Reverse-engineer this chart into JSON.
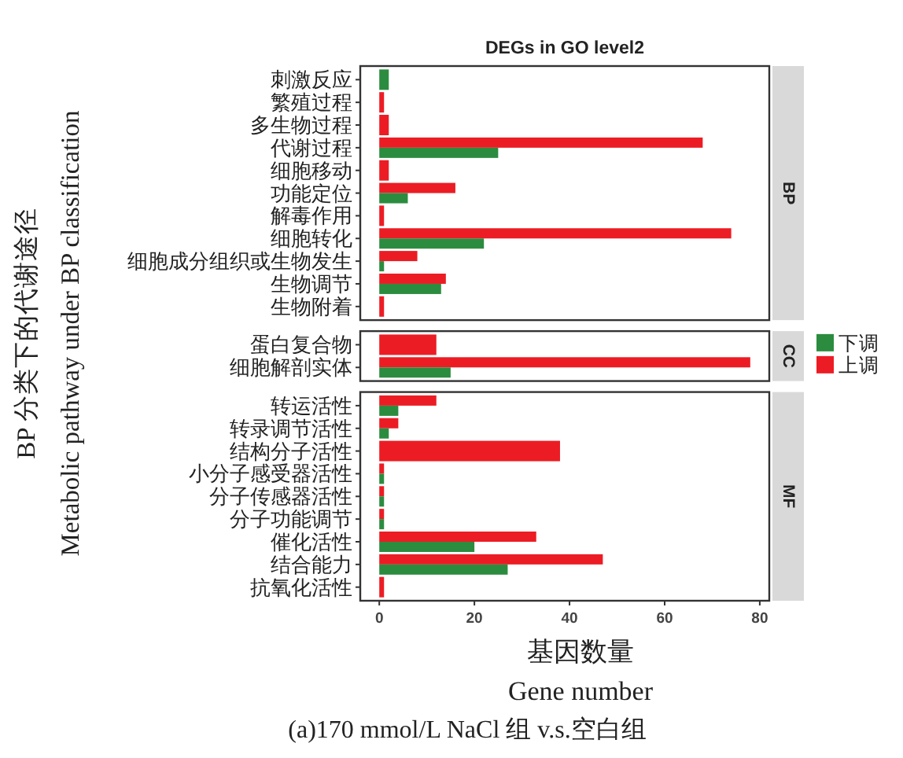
{
  "chart_data": [
    {
      "type": "bar",
      "orientation": "horizontal",
      "title": "DEGs in GO level2",
      "categories": [
        "刺激反应",
        "繁殖过程",
        "多生物过程",
        "代谢过程",
        "细胞移动",
        "功能定位",
        "解毒作用",
        "细胞转化",
        "细胞成分组织或生物发生",
        "生物调节",
        "生物附着"
      ],
      "series": [
        {
          "color": "#ec1c24",
          "values": [
            null,
            1,
            2,
            68,
            2,
            16,
            1,
            74,
            8,
            14,
            1
          ]
        },
        {
          "color": "#2b8c3f",
          "values": [
            2,
            null,
            null,
            25,
            null,
            6,
            null,
            22,
            1,
            13,
            null
          ]
        }
      ],
      "xlim": [
        -4,
        82
      ],
      "tick_labels": "y",
      "annotations": [
        "BP"
      ]
    },
    {
      "type": "bar",
      "orientation": "horizontal",
      "categories": [
        "蛋白复合物",
        "细胞解剖实体"
      ],
      "ylabel": "BP 分类下的代谢途径\nMetabolic pathway under BP classification",
      "series": [
        {
          "name": "上调",
          "color": "#ec1c24",
          "values": [
            12,
            78
          ]
        },
        {
          "name": "下调",
          "color": "#2b8c3f",
          "values": [
            null,
            15
          ]
        }
      ],
      "xlim": [
        -4,
        82
      ],
      "tick_labels": "y",
      "legend": "right",
      "annotations": [
        "CC"
      ]
    },
    {
      "type": "bar",
      "orientation": "horizontal",
      "categories": [
        "转运活性",
        "转录调节活性",
        "结构分子活性",
        "小分子感受器活性",
        "分子传感器活性",
        "分子功能调节",
        "催化活性",
        "结合能力",
        "抗氧化活性"
      ],
      "xlabel": "基因数量\nGene number",
      "series": [
        {
          "color": "#ec1c24",
          "values": [
            12,
            4,
            38,
            1,
            1,
            1,
            33,
            47,
            1
          ]
        },
        {
          "color": "#2b8c3f",
          "values": [
            4,
            2,
            null,
            1,
            1,
            1,
            20,
            27,
            null
          ]
        }
      ],
      "xlim": [
        -4,
        82
      ],
      "xticks": [
        0,
        20,
        40,
        60,
        80
      ],
      "annotations": [
        "MF",
        "(a)170 mmol/L  NaCl 组 v.s.空白组"
      ]
    }
  ]
}
